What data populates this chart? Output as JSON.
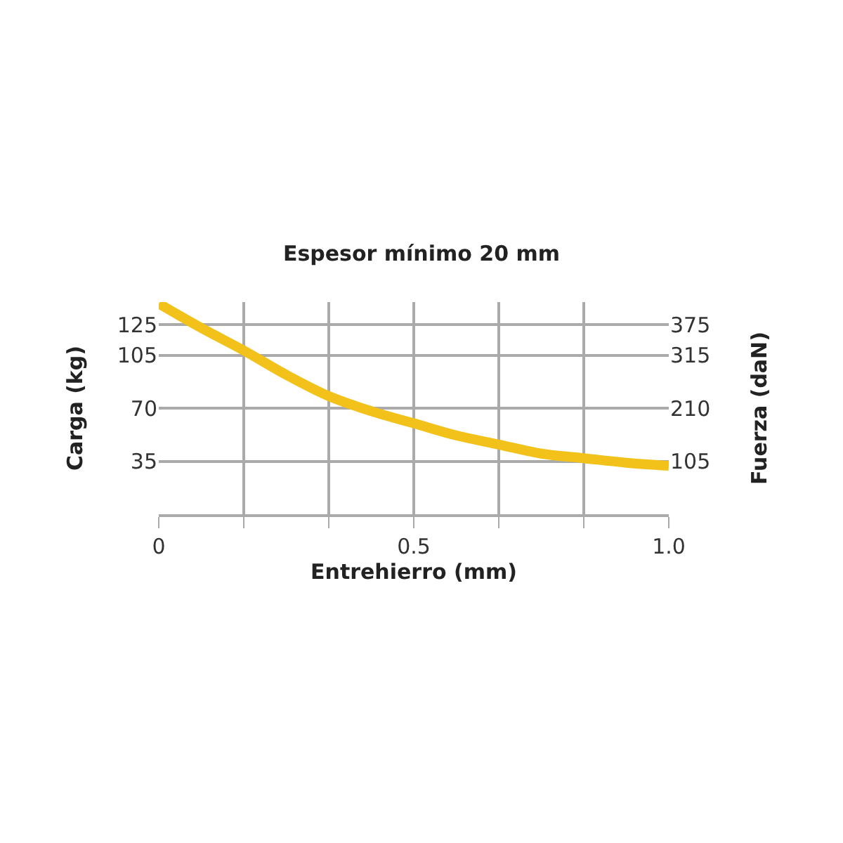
{
  "chart_data": {
    "type": "line",
    "title": "Espesor mínimo 20 mm",
    "xlabel": "Entrehierro (mm)",
    "ylabel": "Carga (kg)",
    "y2label": "Fuerza (daN)",
    "x": [
      0,
      0.083,
      0.167,
      0.25,
      0.333,
      0.417,
      0.5,
      0.583,
      0.667,
      0.75,
      0.833,
      0.917,
      1.0
    ],
    "series": [
      {
        "color": "#f2c21b",
        "values": [
          139,
          123,
          108,
          92,
          78,
          68,
          60,
          52,
          46,
          40,
          37,
          34,
          32
        ]
      }
    ],
    "xlim": [
      0,
      1
    ],
    "xticks": [
      0,
      {
        "value": 0.1667,
        "label": null
      },
      {
        "value": 0.3333,
        "label": null
      },
      0.5,
      {
        "value": 0.6667,
        "label": null
      },
      {
        "value": 0.8333,
        "label": null
      },
      {
        "value": 1,
        "label": "1.0"
      }
    ],
    "ylim": [
      0,
      140
    ],
    "yticks": [
      35,
      70,
      105,
      125
    ],
    "y2lim": [
      0,
      420
    ],
    "y2ticks": [
      105,
      210,
      315,
      375
    ],
    "grid": true,
    "marker": "none",
    "line_style": "solid"
  }
}
